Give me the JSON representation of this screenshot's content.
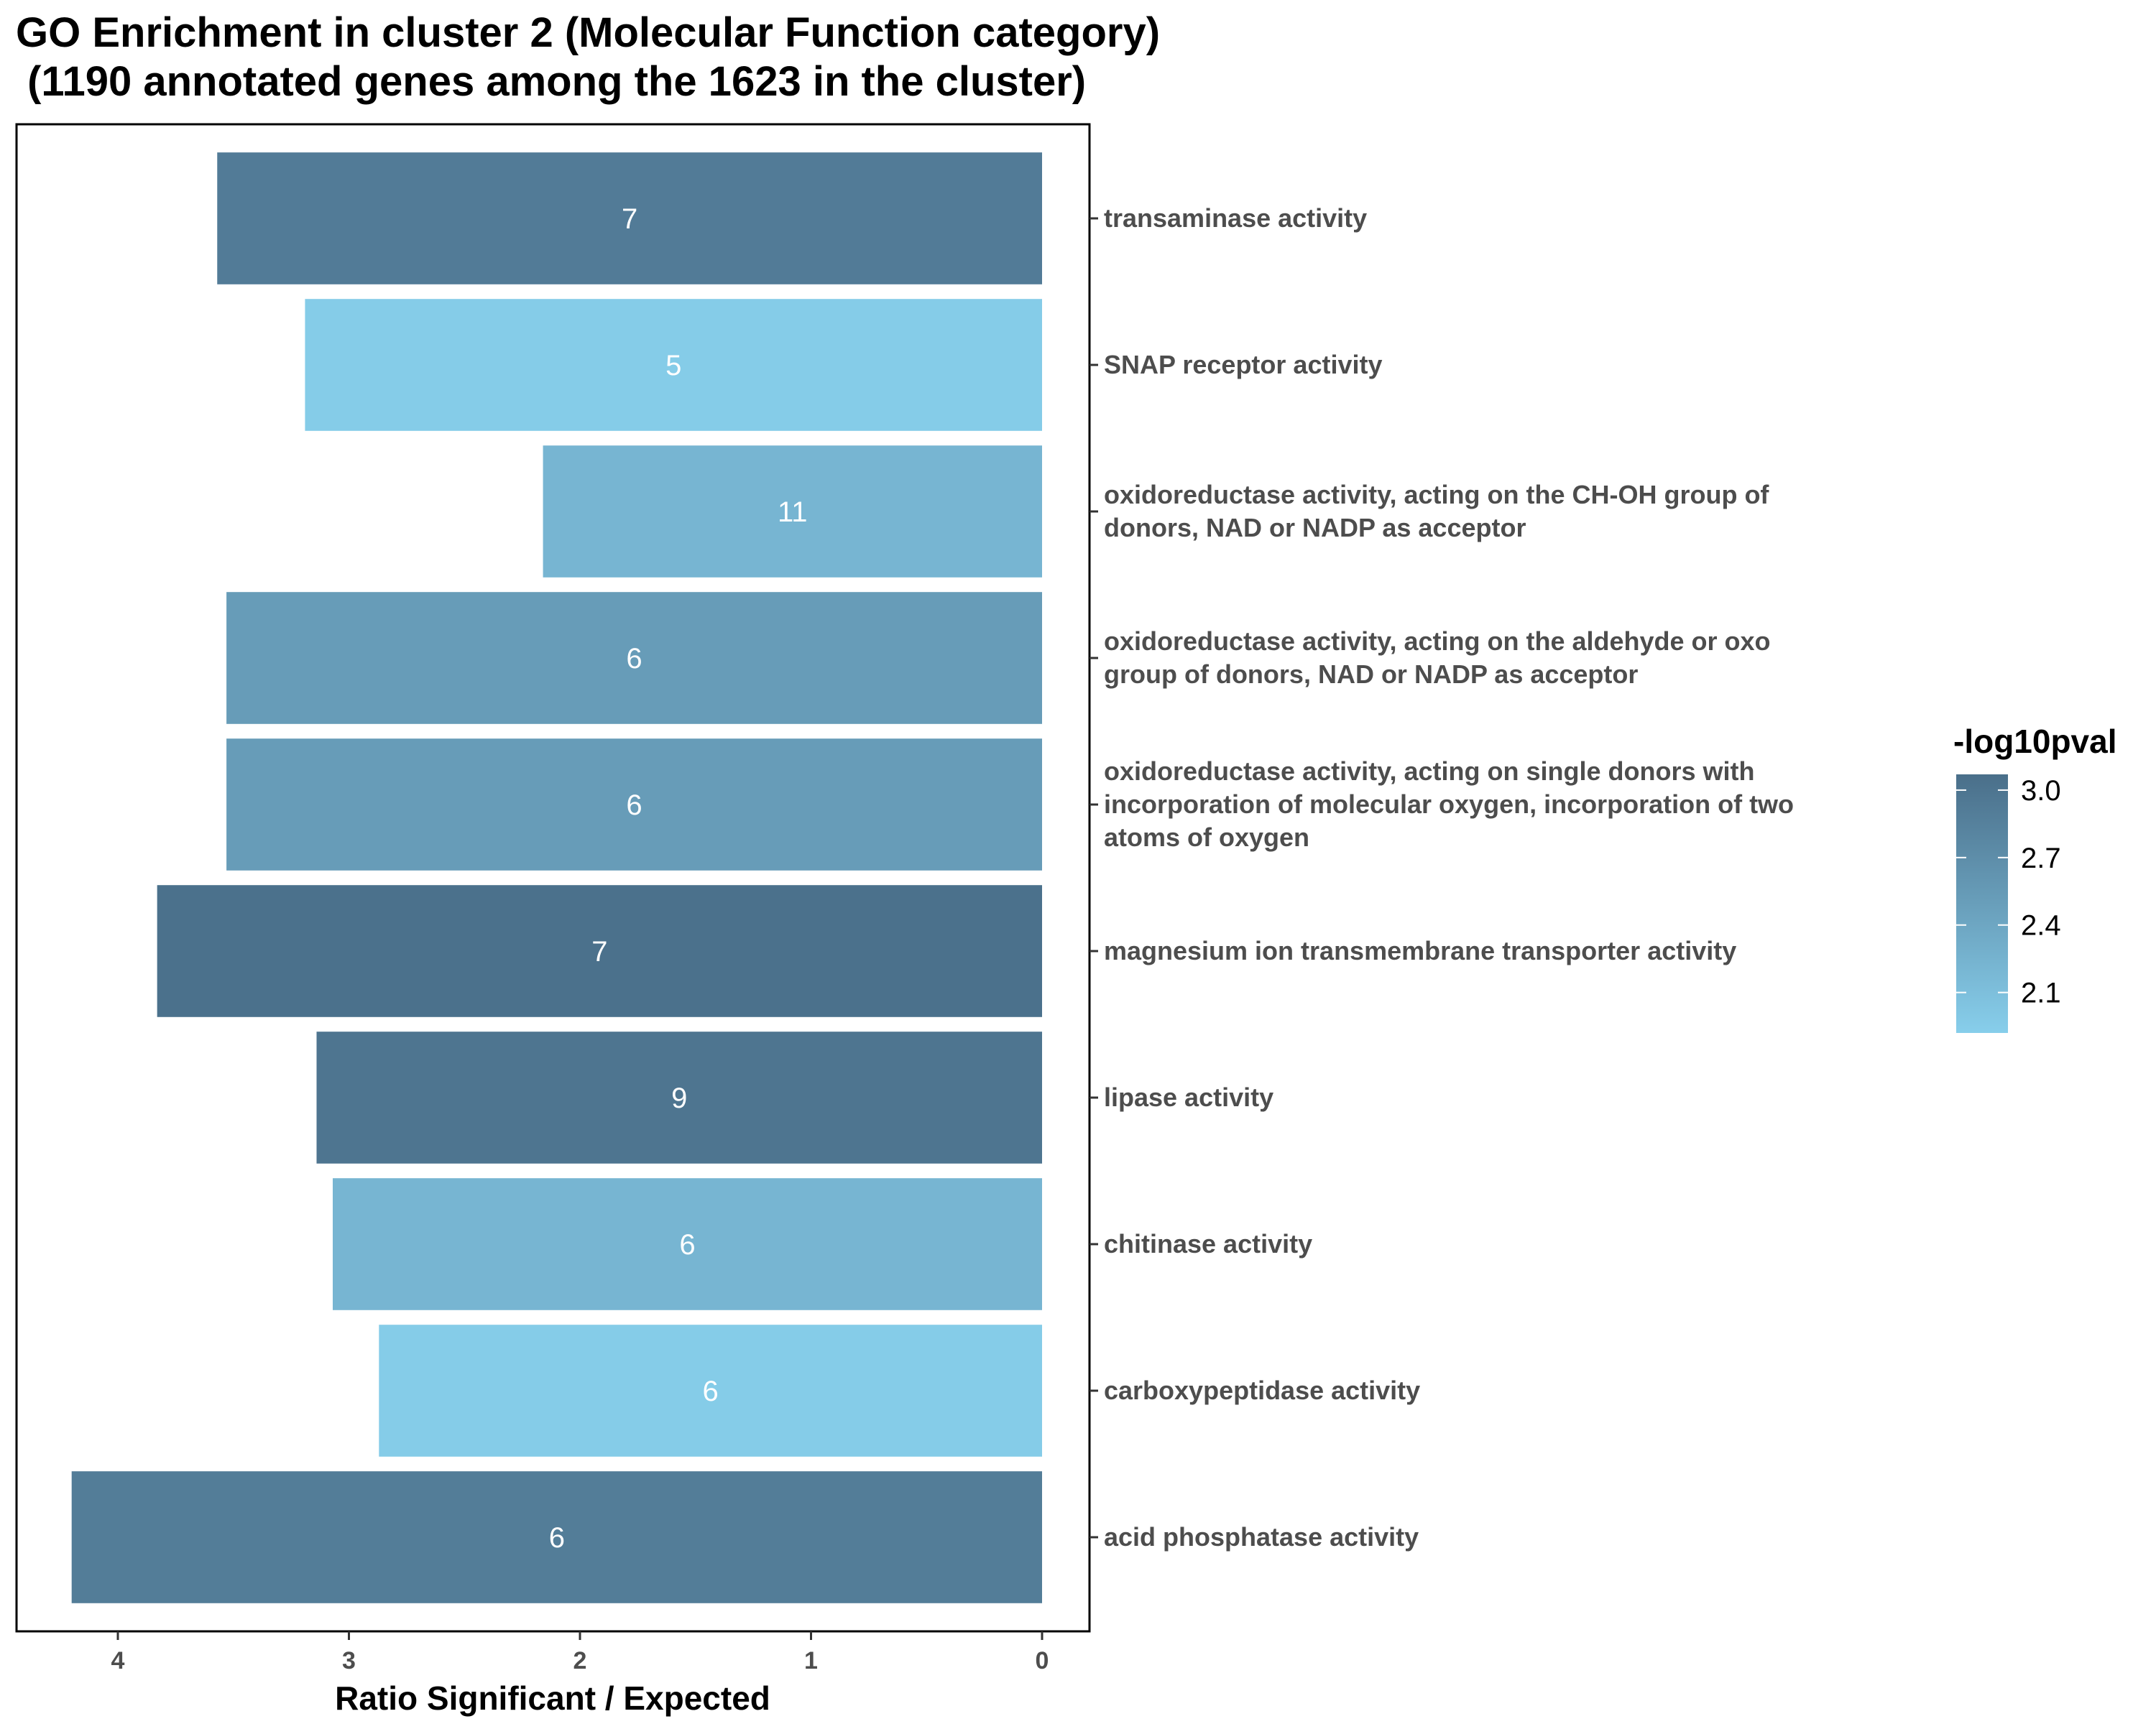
{
  "chart_data": {
    "type": "bar",
    "orientation": "horizontal",
    "x_reversed": true,
    "title": "GO Enrichment in cluster 2 (Molecular Function category)\n (1190 annotated genes among the 1623 in the cluster)",
    "xlabel": "Ratio Significant / Expected",
    "ylabel": "",
    "xlim": [
      0,
      4.32
    ],
    "x_ticks": [
      "0",
      "1",
      "2",
      "3",
      "4"
    ],
    "grid": false,
    "categories": [
      "transaminase activity",
      "SNAP receptor activity",
      "oxidoreductase activity, acting on the CH-OH group of donors, NAD or NADP as acceptor",
      "oxidoreductase activity, acting on the aldehyde or oxo group of donors, NAD or NADP as acceptor",
      "oxidoreductase activity, acting on single donors with incorporation of molecular oxygen, incorporation of two atoms of oxygen",
      "magnesium ion transmembrane transporter activity",
      "lipase activity",
      "chitinase activity",
      "carboxypeptidase activity",
      "acid phosphatase activity"
    ],
    "category_label_lines": [
      [
        "transaminase activity"
      ],
      [
        "SNAP receptor activity"
      ],
      [
        "oxidoreductase activity, acting on the CH-OH group of",
        "donors, NAD or NADP as acceptor"
      ],
      [
        "oxidoreductase activity, acting on the aldehyde or oxo",
        "group of donors, NAD or NADP as acceptor"
      ],
      [
        "oxidoreductase activity, acting on single donors with",
        "incorporation of molecular oxygen, incorporation of two",
        "atoms of oxygen"
      ],
      [
        "magnesium ion transmembrane transporter activity"
      ],
      [
        "lipase activity"
      ],
      [
        "chitinase activity"
      ],
      [
        "carboxypeptidase activity"
      ],
      [
        "acid phosphatase activity"
      ]
    ],
    "values": [
      3.57,
      3.19,
      2.16,
      3.53,
      3.53,
      3.83,
      3.14,
      3.07,
      2.87,
      4.2
    ],
    "bar_labels": [
      "7",
      "5",
      "11",
      "6",
      "6",
      "7",
      "9",
      "6",
      "6",
      "6"
    ],
    "color_values": [
      2.92,
      1.95,
      2.22,
      2.52,
      2.52,
      3.05,
      3.0,
      2.22,
      1.95,
      2.9
    ],
    "legend": {
      "title": "-log10pval",
      "position": "right",
      "range": [
        1.92,
        3.07
      ],
      "ticks": [
        "3.0",
        "2.7",
        "2.4",
        "2.1"
      ],
      "low_color": "#87ceeb",
      "high_color": "#4a6f8a"
    }
  }
}
